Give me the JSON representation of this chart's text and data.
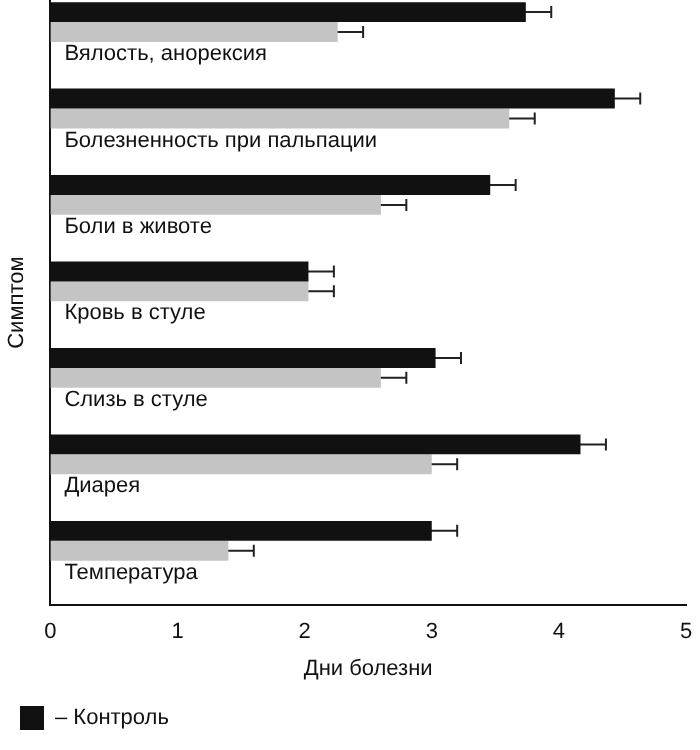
{
  "chart_data": {
    "type": "bar",
    "orientation": "horizontal",
    "xlabel": "Дни болезни",
    "ylabel": "Симптом",
    "categories": [
      "Вялость, анорексия",
      "Болезненность при пальпации",
      "Боли в животе",
      "Кровь в стуле",
      "Слизь в стуле",
      "Диарея",
      "Температура"
    ],
    "series": [
      {
        "name": "– Контроль",
        "color": "#111111",
        "values": [
          3.74,
          4.44,
          3.46,
          2.03,
          3.03,
          4.17,
          3.0
        ],
        "errors": [
          0.2,
          0.2,
          0.2,
          0.2,
          0.2,
          0.2,
          0.2
        ]
      },
      {
        "color": "#c4c4c4",
        "values": [
          2.26,
          3.61,
          2.6,
          2.03,
          2.6,
          3.0,
          1.4
        ],
        "errors": [
          0.2,
          0.2,
          0.2,
          0.2,
          0.2,
          0.2,
          0.2
        ]
      }
    ],
    "xlim": [
      0,
      5
    ],
    "xticks": [
      0,
      1,
      2,
      3,
      4,
      5
    ],
    "grid": false,
    "legend": "bottom left"
  }
}
